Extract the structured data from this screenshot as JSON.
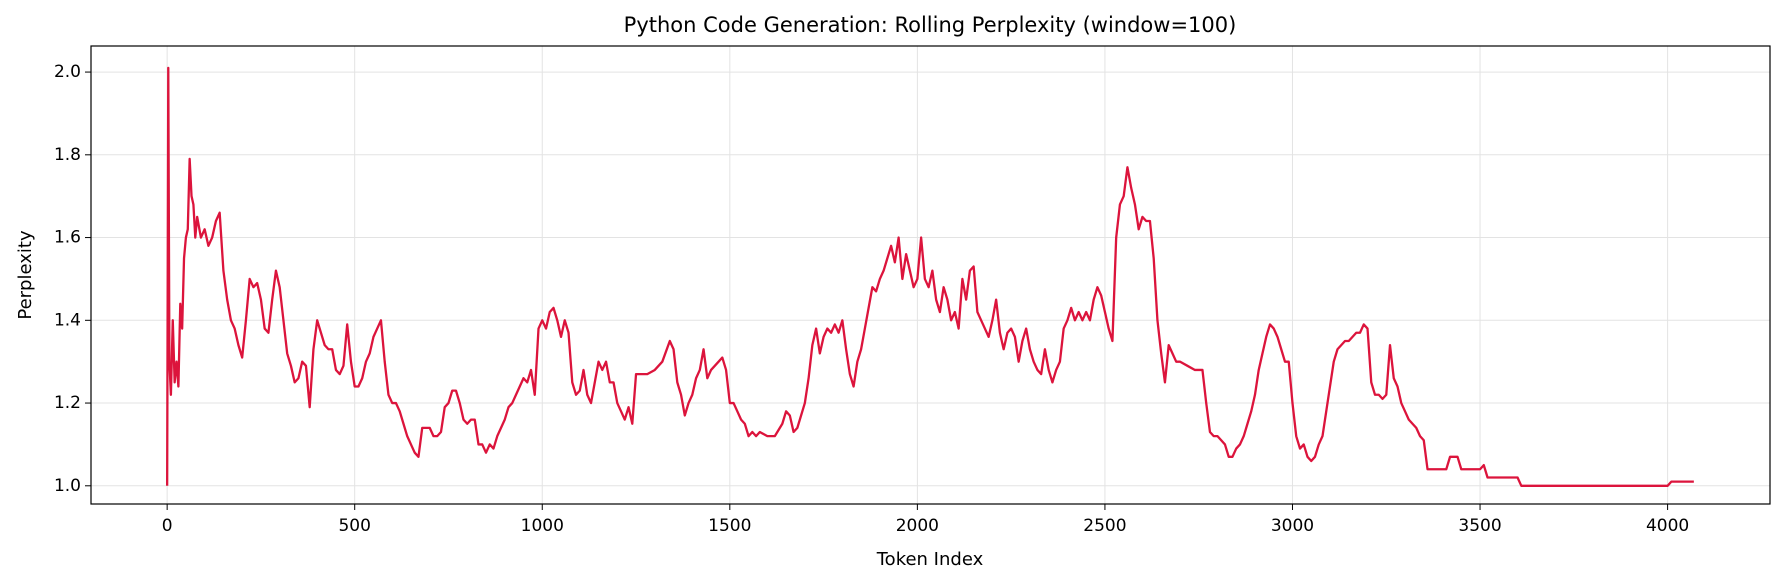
{
  "chart_data": {
    "type": "line",
    "title": "Python Code Generation: Rolling Perplexity (window=100)",
    "xlabel": "Token Index",
    "ylabel": "Perplexity",
    "color": "#dc143c",
    "grid": true,
    "xlim": [
      -203,
      4273
    ],
    "ylim": [
      0.956,
      2.063
    ],
    "xticks": [
      0,
      500,
      1000,
      1500,
      2000,
      2500,
      3000,
      3500,
      4000
    ],
    "yticks": [
      {
        "value": 1,
        "label": "1.0"
      },
      1.2,
      1.4,
      1.6,
      1.8,
      {
        "value": 2,
        "label": "2.0"
      }
    ],
    "x": [
      0,
      3,
      6,
      10,
      15,
      20,
      25,
      30,
      35,
      40,
      45,
      50,
      55,
      60,
      65,
      70,
      75,
      80,
      90,
      100,
      110,
      120,
      130,
      140,
      150,
      160,
      170,
      180,
      190,
      200,
      210,
      220,
      230,
      240,
      250,
      260,
      270,
      280,
      290,
      300,
      310,
      320,
      330,
      340,
      350,
      360,
      370,
      380,
      390,
      400,
      410,
      420,
      430,
      440,
      450,
      460,
      470,
      480,
      490,
      500,
      510,
      520,
      530,
      540,
      550,
      560,
      570,
      580,
      590,
      600,
      610,
      620,
      630,
      640,
      650,
      660,
      670,
      680,
      690,
      700,
      710,
      720,
      730,
      740,
      750,
      760,
      770,
      780,
      790,
      800,
      810,
      820,
      830,
      840,
      850,
      860,
      870,
      880,
      890,
      900,
      910,
      920,
      930,
      940,
      950,
      960,
      970,
      980,
      990,
      1000,
      1010,
      1020,
      1030,
      1040,
      1050,
      1060,
      1070,
      1080,
      1090,
      1100,
      1110,
      1120,
      1130,
      1140,
      1150,
      1160,
      1170,
      1180,
      1190,
      1200,
      1210,
      1220,
      1230,
      1240,
      1250,
      1260,
      1280,
      1300,
      1320,
      1340,
      1350,
      1360,
      1370,
      1380,
      1390,
      1400,
      1410,
      1420,
      1430,
      1440,
      1450,
      1460,
      1470,
      1480,
      1490,
      1500,
      1510,
      1520,
      1530,
      1540,
      1550,
      1560,
      1570,
      1580,
      1600,
      1620,
      1640,
      1650,
      1660,
      1670,
      1680,
      1700,
      1710,
      1720,
      1730,
      1740,
      1750,
      1760,
      1770,
      1780,
      1790,
      1800,
      1810,
      1820,
      1830,
      1840,
      1850,
      1860,
      1870,
      1880,
      1890,
      1900,
      1910,
      1920,
      1930,
      1940,
      1950,
      1960,
      1970,
      1980,
      1990,
      2000,
      2010,
      2020,
      2030,
      2040,
      2050,
      2060,
      2070,
      2080,
      2090,
      2100,
      2110,
      2120,
      2130,
      2140,
      2150,
      2160,
      2170,
      2180,
      2190,
      2200,
      2210,
      2220,
      2230,
      2240,
      2250,
      2260,
      2270,
      2280,
      2290,
      2300,
      2310,
      2320,
      2330,
      2340,
      2350,
      2360,
      2370,
      2380,
      2390,
      2400,
      2410,
      2420,
      2430,
      2440,
      2450,
      2460,
      2470,
      2480,
      2490,
      2500,
      2510,
      2520,
      2530,
      2540,
      2550,
      2560,
      2570,
      2580,
      2590,
      2600,
      2610,
      2620,
      2630,
      2640,
      2650,
      2660,
      2670,
      2680,
      2690,
      2700,
      2720,
      2740,
      2760,
      2770,
      2780,
      2790,
      2800,
      2810,
      2820,
      2830,
      2840,
      2850,
      2860,
      2870,
      2880,
      2890,
      2900,
      2910,
      2920,
      2930,
      2940,
      2950,
      2960,
      2970,
      2980,
      2990,
      3000,
      3010,
      3020,
      3030,
      3040,
      3050,
      3060,
      3070,
      3080,
      3090,
      3100,
      3110,
      3120,
      3130,
      3140,
      3150,
      3160,
      3170,
      3180,
      3190,
      3200,
      3210,
      3220,
      3230,
      3240,
      3250,
      3260,
      3270,
      3280,
      3290,
      3300,
      3310,
      3320,
      3330,
      3340,
      3350,
      3360,
      3380,
      3400,
      3410,
      3420,
      3440,
      3450,
      3480,
      3500,
      3510,
      3520,
      3560,
      3600,
      3610,
      4000,
      4010,
      4070
    ],
    "values": [
      1.0,
      2.01,
      1.3,
      1.22,
      1.4,
      1.25,
      1.3,
      1.24,
      1.44,
      1.38,
      1.55,
      1.6,
      1.62,
      1.79,
      1.7,
      1.68,
      1.6,
      1.65,
      1.6,
      1.62,
      1.58,
      1.6,
      1.64,
      1.66,
      1.52,
      1.45,
      1.4,
      1.38,
      1.34,
      1.31,
      1.4,
      1.5,
      1.48,
      1.49,
      1.45,
      1.38,
      1.37,
      1.45,
      1.52,
      1.48,
      1.4,
      1.32,
      1.29,
      1.25,
      1.26,
      1.3,
      1.29,
      1.19,
      1.33,
      1.4,
      1.37,
      1.34,
      1.33,
      1.33,
      1.28,
      1.27,
      1.29,
      1.39,
      1.3,
      1.24,
      1.24,
      1.26,
      1.3,
      1.32,
      1.36,
      1.38,
      1.4,
      1.3,
      1.22,
      1.2,
      1.2,
      1.18,
      1.15,
      1.12,
      1.1,
      1.08,
      1.07,
      1.14,
      1.14,
      1.14,
      1.12,
      1.12,
      1.13,
      1.19,
      1.2,
      1.23,
      1.23,
      1.2,
      1.16,
      1.15,
      1.16,
      1.16,
      1.1,
      1.1,
      1.08,
      1.1,
      1.09,
      1.12,
      1.14,
      1.16,
      1.19,
      1.2,
      1.22,
      1.24,
      1.26,
      1.25,
      1.28,
      1.22,
      1.38,
      1.4,
      1.38,
      1.42,
      1.43,
      1.4,
      1.36,
      1.4,
      1.37,
      1.25,
      1.22,
      1.23,
      1.28,
      1.22,
      1.2,
      1.25,
      1.3,
      1.28,
      1.3,
      1.25,
      1.25,
      1.2,
      1.18,
      1.16,
      1.19,
      1.15,
      1.27,
      1.27,
      1.27,
      1.28,
      1.3,
      1.35,
      1.33,
      1.25,
      1.22,
      1.17,
      1.2,
      1.22,
      1.26,
      1.28,
      1.33,
      1.26,
      1.28,
      1.29,
      1.3,
      1.31,
      1.28,
      1.2,
      1.2,
      1.18,
      1.16,
      1.15,
      1.12,
      1.13,
      1.12,
      1.13,
      1.12,
      1.12,
      1.15,
      1.18,
      1.17,
      1.13,
      1.14,
      1.2,
      1.26,
      1.34,
      1.38,
      1.32,
      1.36,
      1.38,
      1.37,
      1.39,
      1.37,
      1.4,
      1.33,
      1.27,
      1.24,
      1.3,
      1.33,
      1.38,
      1.43,
      1.48,
      1.47,
      1.5,
      1.52,
      1.55,
      1.58,
      1.54,
      1.6,
      1.5,
      1.56,
      1.52,
      1.48,
      1.5,
      1.6,
      1.5,
      1.48,
      1.52,
      1.45,
      1.42,
      1.48,
      1.45,
      1.4,
      1.42,
      1.38,
      1.5,
      1.45,
      1.52,
      1.53,
      1.42,
      1.4,
      1.38,
      1.36,
      1.4,
      1.45,
      1.37,
      1.33,
      1.37,
      1.38,
      1.36,
      1.3,
      1.35,
      1.38,
      1.33,
      1.3,
      1.28,
      1.27,
      1.33,
      1.28,
      1.25,
      1.28,
      1.3,
      1.38,
      1.4,
      1.43,
      1.4,
      1.42,
      1.4,
      1.42,
      1.4,
      1.45,
      1.48,
      1.46,
      1.42,
      1.38,
      1.35,
      1.6,
      1.68,
      1.7,
      1.77,
      1.72,
      1.68,
      1.62,
      1.65,
      1.64,
      1.64,
      1.55,
      1.4,
      1.32,
      1.25,
      1.34,
      1.32,
      1.3,
      1.3,
      1.29,
      1.28,
      1.28,
      1.2,
      1.13,
      1.12,
      1.12,
      1.11,
      1.1,
      1.07,
      1.07,
      1.09,
      1.1,
      1.12,
      1.15,
      1.18,
      1.22,
      1.28,
      1.32,
      1.36,
      1.39,
      1.38,
      1.36,
      1.33,
      1.3,
      1.3,
      1.2,
      1.12,
      1.09,
      1.1,
      1.07,
      1.06,
      1.07,
      1.1,
      1.12,
      1.18,
      1.24,
      1.3,
      1.33,
      1.34,
      1.35,
      1.35,
      1.36,
      1.37,
      1.37,
      1.39,
      1.38,
      1.25,
      1.22,
      1.22,
      1.21,
      1.22,
      1.34,
      1.26,
      1.24,
      1.2,
      1.18,
      1.16,
      1.15,
      1.14,
      1.12,
      1.11,
      1.04,
      1.04,
      1.04,
      1.04,
      1.07,
      1.07,
      1.04,
      1.04,
      1.04,
      1.05,
      1.02,
      1.02,
      1.02,
      1.0,
      1.0,
      1.01,
      1.01
    ]
  }
}
